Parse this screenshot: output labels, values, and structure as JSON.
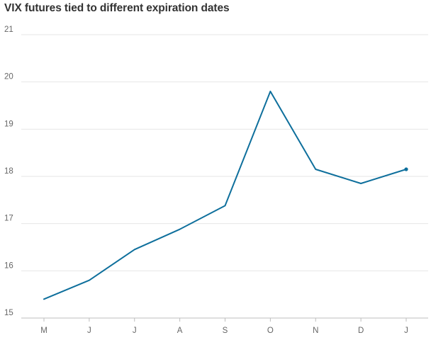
{
  "title": "VIX futures tied to different expiration dates",
  "chart_data": {
    "type": "line",
    "title": "VIX futures tied to different expiration dates",
    "xlabel": "",
    "ylabel": "",
    "categories": [
      "M",
      "J",
      "J",
      "A",
      "S",
      "O",
      "N",
      "D",
      "J"
    ],
    "series": [
      {
        "values": [
          15.4,
          15.8,
          16.45,
          16.88,
          17.38,
          19.8,
          18.15,
          17.85,
          18.15
        ],
        "color": "#0e6f9c"
      }
    ],
    "ylim": [
      15,
      21
    ],
    "yticks": [
      15,
      16,
      17,
      18,
      19,
      20,
      21
    ],
    "grid": true,
    "legend": "none",
    "end_marker": true
  }
}
